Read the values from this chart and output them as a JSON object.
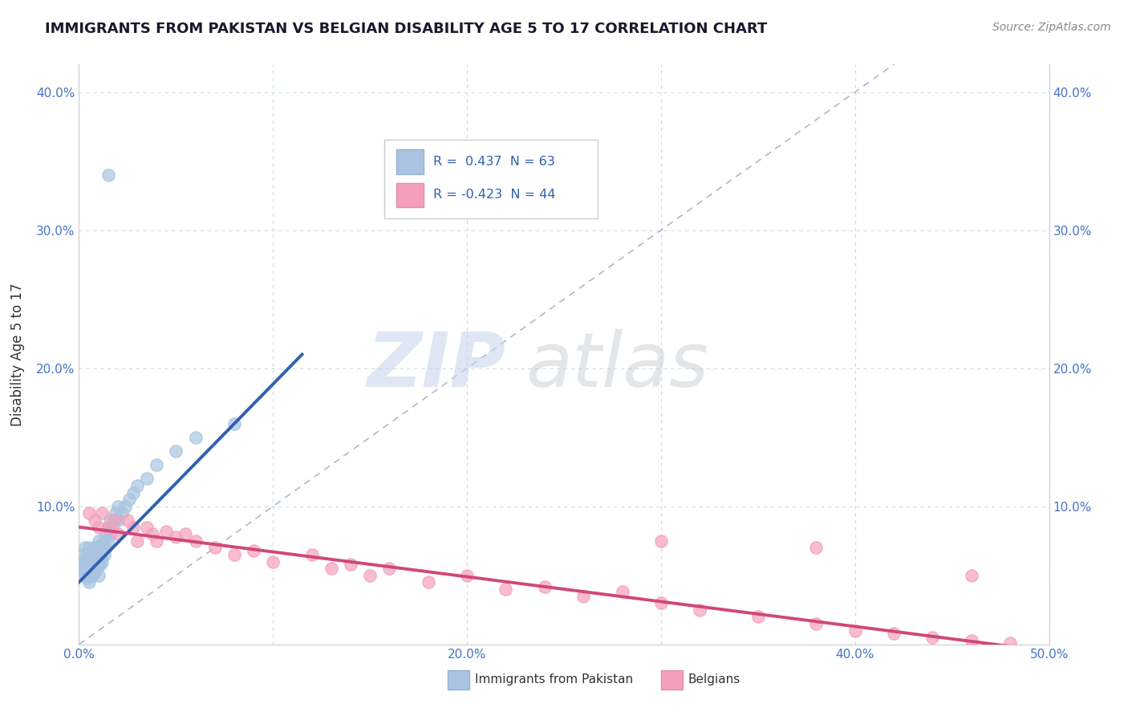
{
  "title": "IMMIGRANTS FROM PAKISTAN VS BELGIAN DISABILITY AGE 5 TO 17 CORRELATION CHART",
  "source": "Source: ZipAtlas.com",
  "ylabel": "Disability Age 5 to 17",
  "xlim": [
    0.0,
    0.5
  ],
  "ylim": [
    0.0,
    0.42
  ],
  "xticks": [
    0.0,
    0.1,
    0.2,
    0.3,
    0.4,
    0.5
  ],
  "xtick_labels": [
    "0.0%",
    "",
    "20.0%",
    "",
    "40.0%",
    "50.0%"
  ],
  "yticks": [
    0.0,
    0.1,
    0.2,
    0.3,
    0.4
  ],
  "ytick_labels": [
    "",
    "10.0%",
    "20.0%",
    "30.0%",
    "40.0%"
  ],
  "R_pakistan": 0.437,
  "N_pakistan": 63,
  "R_belgians": -0.423,
  "N_belgians": 44,
  "color_pakistan": "#a8c4e0",
  "color_belgians": "#f4a0bc",
  "trendline_pakistan": "#3060b0",
  "trendline_belgians": "#d04878",
  "background_color": "#ffffff",
  "grid_color": "#c8dce8",
  "pakistan_points_x": [
    0.001,
    0.002,
    0.002,
    0.003,
    0.003,
    0.003,
    0.004,
    0.004,
    0.004,
    0.004,
    0.005,
    0.005,
    0.005,
    0.005,
    0.005,
    0.006,
    0.006,
    0.006,
    0.006,
    0.007,
    0.007,
    0.007,
    0.007,
    0.008,
    0.008,
    0.008,
    0.008,
    0.009,
    0.009,
    0.009,
    0.01,
    0.01,
    0.01,
    0.01,
    0.011,
    0.011,
    0.011,
    0.012,
    0.012,
    0.013,
    0.013,
    0.014,
    0.014,
    0.015,
    0.015,
    0.016,
    0.016,
    0.017,
    0.018,
    0.019,
    0.02,
    0.02,
    0.022,
    0.024,
    0.026,
    0.028,
    0.03,
    0.035,
    0.04,
    0.05,
    0.06,
    0.08,
    0.015
  ],
  "pakistan_points_y": [
    0.055,
    0.06,
    0.065,
    0.05,
    0.055,
    0.07,
    0.048,
    0.052,
    0.06,
    0.065,
    0.045,
    0.05,
    0.055,
    0.06,
    0.07,
    0.05,
    0.055,
    0.06,
    0.065,
    0.05,
    0.055,
    0.06,
    0.068,
    0.052,
    0.058,
    0.065,
    0.07,
    0.055,
    0.062,
    0.07,
    0.05,
    0.058,
    0.065,
    0.075,
    0.058,
    0.065,
    0.072,
    0.06,
    0.07,
    0.065,
    0.075,
    0.07,
    0.08,
    0.075,
    0.085,
    0.08,
    0.09,
    0.085,
    0.09,
    0.095,
    0.09,
    0.1,
    0.095,
    0.1,
    0.105,
    0.11,
    0.115,
    0.12,
    0.13,
    0.14,
    0.15,
    0.16,
    0.34
  ],
  "belgians_points_x": [
    0.005,
    0.008,
    0.01,
    0.012,
    0.015,
    0.018,
    0.02,
    0.025,
    0.028,
    0.03,
    0.035,
    0.038,
    0.04,
    0.045,
    0.05,
    0.055,
    0.06,
    0.07,
    0.08,
    0.09,
    0.1,
    0.12,
    0.13,
    0.14,
    0.15,
    0.16,
    0.18,
    0.2,
    0.22,
    0.24,
    0.26,
    0.28,
    0.3,
    0.32,
    0.35,
    0.38,
    0.4,
    0.42,
    0.44,
    0.46,
    0.48,
    0.3,
    0.38,
    0.46
  ],
  "belgians_points_y": [
    0.095,
    0.09,
    0.085,
    0.095,
    0.085,
    0.09,
    0.08,
    0.09,
    0.085,
    0.075,
    0.085,
    0.08,
    0.075,
    0.082,
    0.078,
    0.08,
    0.075,
    0.07,
    0.065,
    0.068,
    0.06,
    0.065,
    0.055,
    0.058,
    0.05,
    0.055,
    0.045,
    0.05,
    0.04,
    0.042,
    0.035,
    0.038,
    0.03,
    0.025,
    0.02,
    0.015,
    0.01,
    0.008,
    0.005,
    0.003,
    0.001,
    0.075,
    0.07,
    0.05
  ],
  "pak_trend_x": [
    0.0,
    0.115
  ],
  "pak_trend_y": [
    0.045,
    0.21
  ],
  "bel_trend_x": [
    0.0,
    0.5
  ],
  "bel_trend_y": [
    0.085,
    -0.005
  ],
  "diag_line_x": [
    0.0,
    0.42
  ],
  "diag_line_y": [
    0.0,
    0.42
  ]
}
